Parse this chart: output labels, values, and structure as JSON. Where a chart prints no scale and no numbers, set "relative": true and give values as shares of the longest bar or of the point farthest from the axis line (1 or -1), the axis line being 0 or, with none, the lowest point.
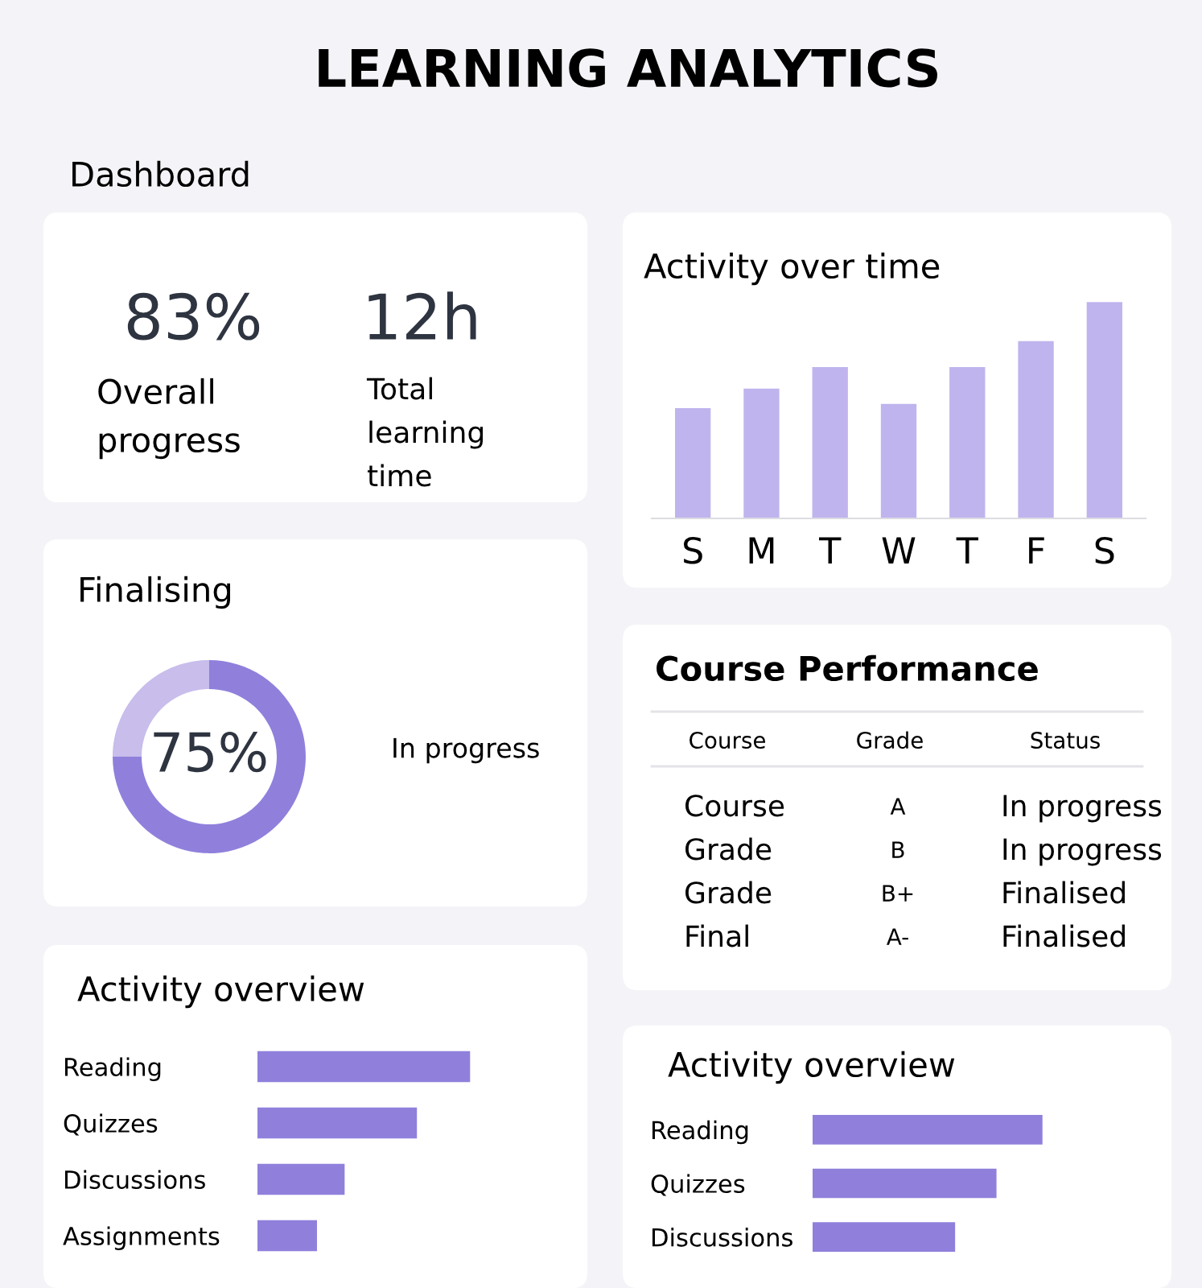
{
  "chart_data": [
    {
      "type": "other",
      "title": "LEARNING ANALYTICS",
      "subtitle": "Dashboard",
      "annotations": [
        "83%",
        "Overall progress",
        "12h",
        "Total learning time"
      ]
    },
    {
      "type": "bar",
      "title": "Activity over time",
      "categories": [
        "S",
        "M",
        "T",
        "W",
        "T",
        "F",
        "S"
      ],
      "values": [
        0.51,
        0.6,
        0.7,
        0.53,
        0.7,
        0.82,
        1
      ],
      "relative": true,
      "color": "#c0b4ee"
    },
    {
      "type": "donut",
      "title": "Finalising",
      "categories": [
        null,
        null
      ],
      "values": [
        75,
        25
      ],
      "colors": [
        "#9080dc",
        "#c8bdeb"
      ],
      "annotations": [
        "75%",
        "In progress"
      ]
    },
    {
      "type": "other",
      "title": "Course Performance",
      "annotations": [
        "Course",
        "Grade",
        "Status",
        "Course",
        "A",
        "In progress",
        "Grade",
        "B",
        "In progress",
        "Grade",
        "B+",
        "Finalised",
        "Final",
        "A-",
        "Finalised"
      ]
    },
    {
      "type": "bar",
      "orientation": "horizontal",
      "title": "Activity overview",
      "categories": [
        "Reading",
        "Quizzes",
        "Discussions",
        "Assignments"
      ],
      "values": [
        1,
        0.75,
        0.41,
        0.28
      ],
      "relative": true,
      "color": "#9080dc"
    },
    {
      "type": "bar",
      "orientation": "horizontal",
      "title": "Activity overview",
      "categories": [
        "Reading",
        "Quizzes",
        "Discussions"
      ],
      "values": [
        1,
        0.8,
        0.62
      ],
      "relative": true,
      "color": "#9080dc"
    }
  ]
}
